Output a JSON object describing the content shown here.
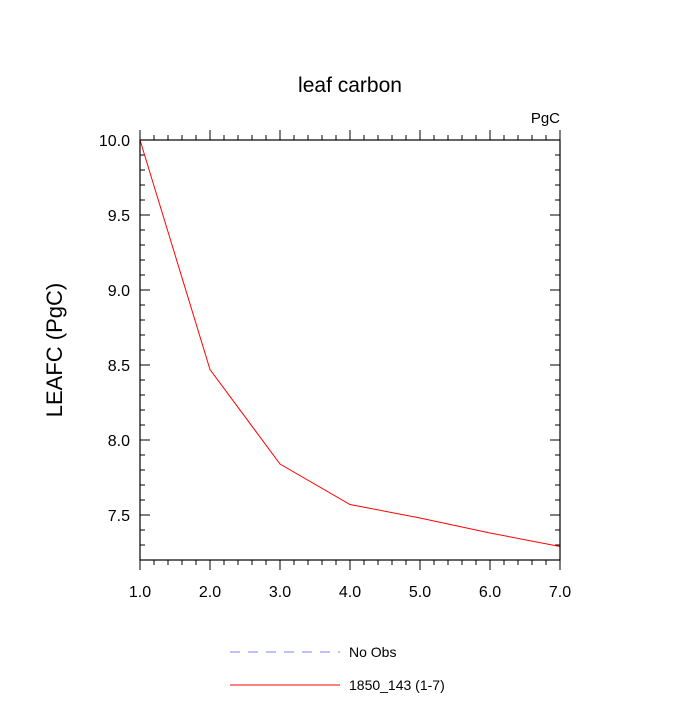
{
  "chart_data": {
    "type": "line",
    "title": "leaf carbon",
    "units_label": "PgC",
    "xlabel": "",
    "ylabel": "LEAFC  (PgC)",
    "xlim": [
      1.0,
      7.0
    ],
    "ylim": [
      7.2,
      10.0
    ],
    "x_ticks": [
      1.0,
      2.0,
      3.0,
      4.0,
      5.0,
      6.0,
      7.0
    ],
    "x_tick_labels": [
      "1.0",
      "2.0",
      "3.0",
      "4.0",
      "5.0",
      "6.0",
      "7.0"
    ],
    "y_ticks": [
      7.5,
      8.0,
      8.5,
      9.0,
      9.5,
      10.0
    ],
    "y_tick_labels": [
      "7.5",
      "8.0",
      "8.5",
      "9.0",
      "9.5",
      "10.0"
    ],
    "y_minor_step": 0.1,
    "x_minor_step": 0.2,
    "grid": false,
    "legend_position": "bottom",
    "series": [
      {
        "name": "No Obs",
        "style": "dashed",
        "color": "#8080ff",
        "x": [],
        "values": []
      },
      {
        "name": "1850_143 (1-7)",
        "style": "solid",
        "color": "#ff0000",
        "x": [
          1,
          2,
          3,
          4,
          5,
          6,
          7
        ],
        "values": [
          10.0,
          8.47,
          7.84,
          7.57,
          7.48,
          7.38,
          7.29
        ]
      }
    ]
  }
}
